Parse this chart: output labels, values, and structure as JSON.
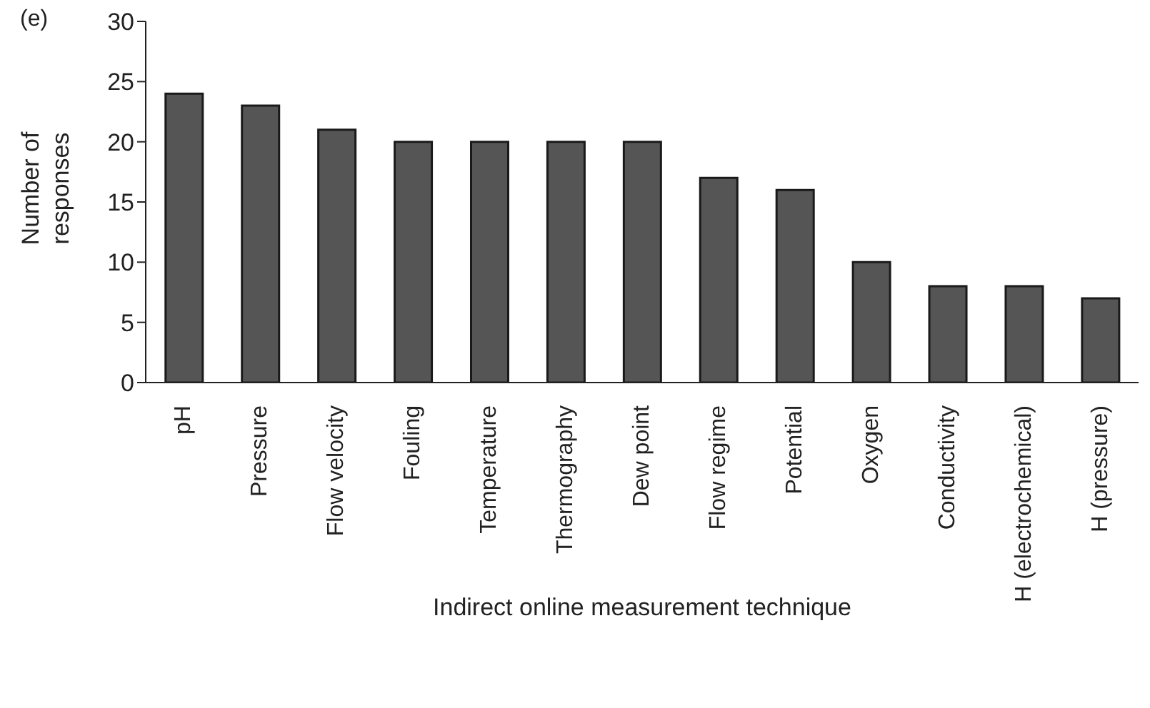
{
  "chart_data": {
    "type": "bar",
    "categories": [
      "pH",
      "Pressure",
      "Flow velocity",
      "Fouling",
      "Temperature",
      "Thermography",
      "Dew point",
      "Flow regime",
      "Potential",
      "Oxygen",
      "Conductivity",
      "H (electrochemical)",
      "H (pressure)"
    ],
    "values": [
      24,
      23,
      21,
      20,
      20,
      20,
      20,
      17,
      16,
      10,
      8,
      8,
      7
    ],
    "color": "#555555",
    "xlabel": "Indirect online measurement technique",
    "ylabel": "Number of responses",
    "annotations": [
      "(e)"
    ],
    "ylim": [
      0,
      30
    ],
    "yticks": [
      0,
      5,
      10,
      15,
      20,
      25,
      30
    ],
    "grid": false,
    "legend": false
  }
}
